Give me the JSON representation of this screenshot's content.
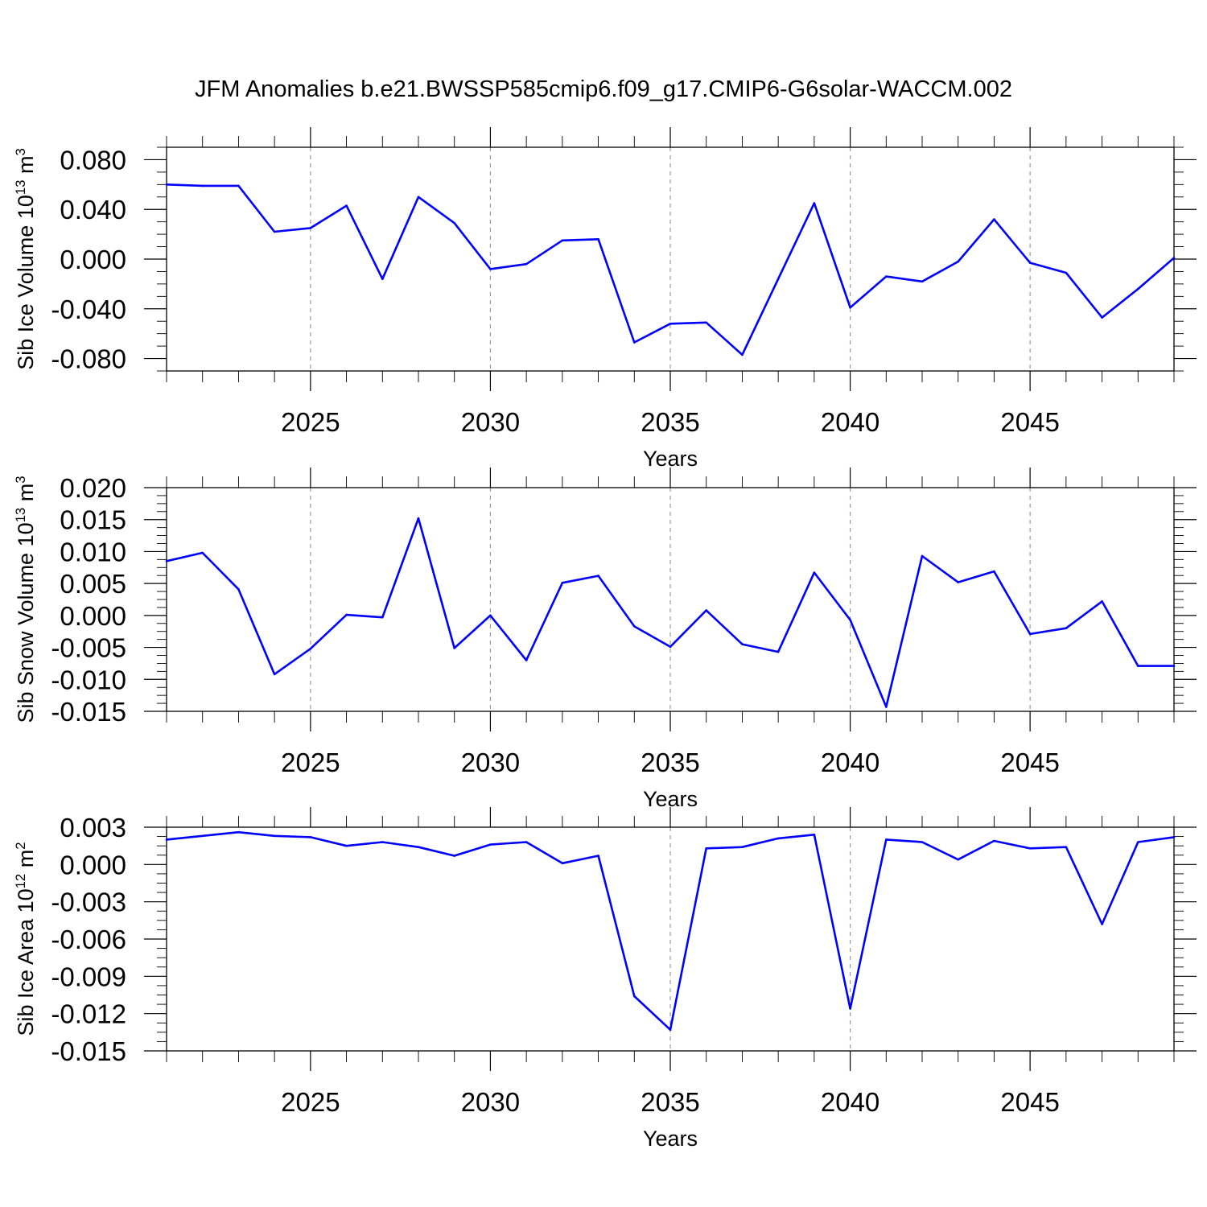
{
  "colors": {
    "series": "#0000ff",
    "axis": "#000000",
    "grid": "#999999"
  },
  "chart_data": {
    "title": "JFM Anomalies b.e21.BWSSP585cmip6.f09_g17.CMIP6-G6solar-WACCM.002",
    "panels": [
      {
        "type": "line",
        "ylabel_text": "Sib Ice Volume 10",
        "ylabel_exp": "13",
        "ylabel_unit": " m",
        "ylabel_unit_exp": "3",
        "xlabel": "Years",
        "xlim": [
          2021,
          2049
        ],
        "ylim": [
          -0.09,
          0.09
        ],
        "yticks": [
          -0.08,
          -0.04,
          0.0,
          0.04,
          0.08
        ],
        "ytick_labels": [
          "-0.080",
          "-0.040",
          "0.000",
          "0.040",
          "0.080"
        ],
        "xticks": [
          2025,
          2030,
          2035,
          2040,
          2045
        ],
        "xtick_labels": [
          "2025",
          "2030",
          "2035",
          "2040",
          "2045"
        ],
        "grid_x": [
          2025,
          2030,
          2035,
          2040,
          2045
        ],
        "x": [
          2021,
          2022,
          2023,
          2024,
          2025,
          2026,
          2027,
          2028,
          2029,
          2030,
          2031,
          2032,
          2033,
          2034,
          2035,
          2036,
          2037,
          2038,
          2039,
          2040,
          2041,
          2042,
          2043,
          2044,
          2045,
          2046,
          2047,
          2048,
          2049
        ],
        "y": [
          0.06,
          0.059,
          0.059,
          0.022,
          0.025,
          0.043,
          -0.016,
          0.05,
          0.029,
          -0.008,
          -0.004,
          0.015,
          0.016,
          -0.067,
          -0.052,
          -0.051,
          -0.077,
          -0.016,
          0.045,
          -0.039,
          -0.014,
          -0.018,
          -0.002,
          0.032,
          -0.003,
          -0.011,
          -0.047,
          -0.024,
          0.001
        ]
      },
      {
        "type": "line",
        "ylabel_text": "Sib Snow Volume 10",
        "ylabel_exp": "13",
        "ylabel_unit": " m",
        "ylabel_unit_exp": "3",
        "xlabel": "Years",
        "xlim": [
          2021,
          2049
        ],
        "ylim": [
          -0.015,
          0.02
        ],
        "yticks": [
          -0.015,
          -0.01,
          -0.005,
          0.0,
          0.005,
          0.01,
          0.015,
          0.02
        ],
        "ytick_labels": [
          "-0.015",
          "-0.010",
          "-0.005",
          "0.000",
          "0.005",
          "0.010",
          "0.015",
          "0.020"
        ],
        "xticks": [
          2025,
          2030,
          2035,
          2040,
          2045
        ],
        "xtick_labels": [
          "2025",
          "2030",
          "2035",
          "2040",
          "2045"
        ],
        "grid_x": [
          2025,
          2030,
          2035,
          2040,
          2045
        ],
        "x": [
          2021,
          2022,
          2023,
          2024,
          2025,
          2026,
          2027,
          2028,
          2029,
          2030,
          2031,
          2032,
          2033,
          2034,
          2035,
          2036,
          2037,
          2038,
          2039,
          2040,
          2041,
          2042,
          2043,
          2044,
          2045,
          2046,
          2047,
          2048,
          2049
        ],
        "y": [
          0.0085,
          0.0098,
          0.0041,
          -0.0092,
          -0.0052,
          0.0001,
          -0.0003,
          0.0152,
          -0.0051,
          0.0,
          -0.007,
          0.0051,
          0.0062,
          -0.0017,
          -0.0049,
          0.0008,
          -0.0045,
          -0.0057,
          0.0067,
          -0.0007,
          -0.0143,
          0.0093,
          0.0052,
          0.0069,
          -0.0029,
          -0.002,
          0.0022,
          -0.0079,
          -0.0079
        ]
      },
      {
        "type": "line",
        "ylabel_text": "Sib Ice Area 10",
        "ylabel_exp": "12",
        "ylabel_unit": " m",
        "ylabel_unit_exp": "2",
        "xlabel": "Years",
        "xlim": [
          2021,
          2049
        ],
        "ylim": [
          -0.015,
          0.003
        ],
        "yticks": [
          -0.015,
          -0.012,
          -0.009,
          -0.006,
          -0.003,
          0.0,
          0.003
        ],
        "ytick_labels": [
          "-0.015",
          "-0.012",
          "-0.009",
          "-0.006",
          "-0.003",
          "0.000",
          "0.003"
        ],
        "xticks": [
          2025,
          2030,
          2035,
          2040,
          2045
        ],
        "xtick_labels": [
          "2025",
          "2030",
          "2035",
          "2040",
          "2045"
        ],
        "grid_x": [
          2035,
          2040
        ],
        "x": [
          2021,
          2022,
          2023,
          2024,
          2025,
          2026,
          2027,
          2028,
          2029,
          2030,
          2031,
          2032,
          2033,
          2034,
          2035,
          2036,
          2037,
          2038,
          2039,
          2040,
          2041,
          2042,
          2043,
          2044,
          2045,
          2046,
          2047,
          2048,
          2049
        ],
        "y": [
          0.002,
          0.0023,
          0.0026,
          0.0023,
          0.0022,
          0.0015,
          0.0018,
          0.0014,
          0.0007,
          0.0016,
          0.0018,
          0.0001,
          0.0007,
          -0.0106,
          -0.0133,
          0.0013,
          0.0014,
          0.0021,
          0.0024,
          -0.0116,
          0.002,
          0.0018,
          0.0004,
          0.0019,
          0.0013,
          0.0014,
          -0.0048,
          0.0018,
          0.0022
        ]
      }
    ]
  }
}
